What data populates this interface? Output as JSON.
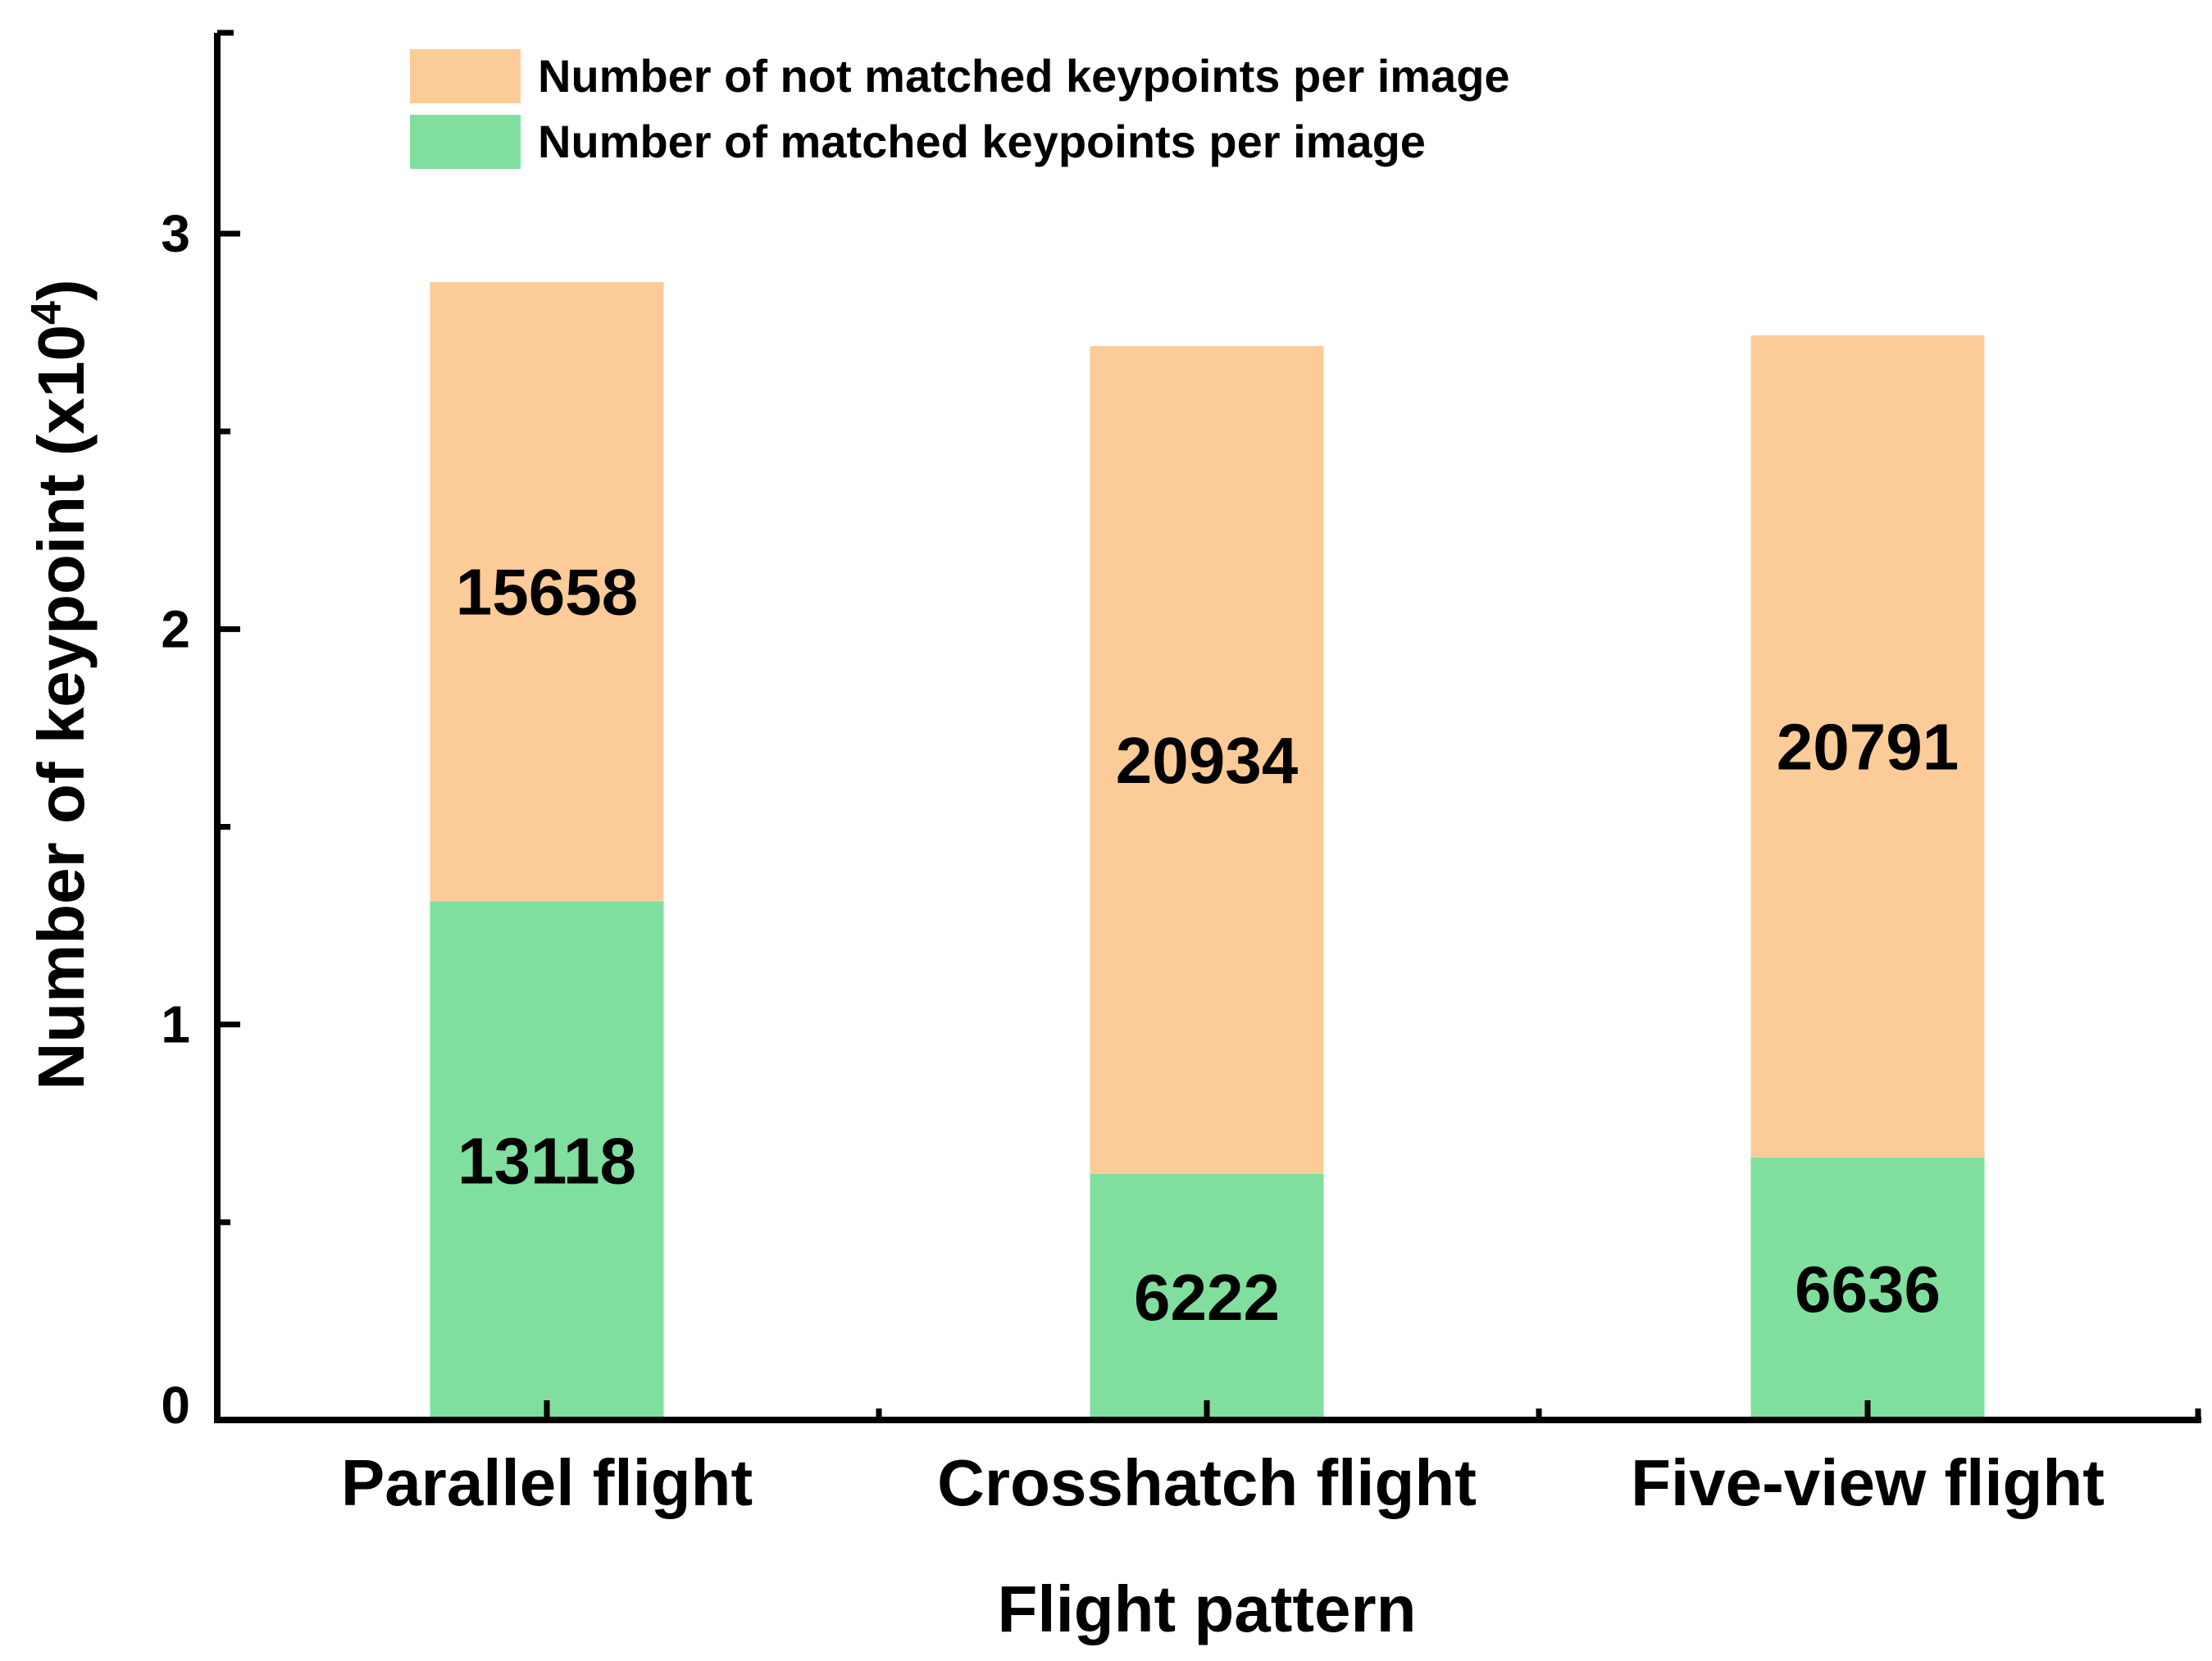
{
  "chart_data": {
    "type": "bar",
    "stacked": true,
    "categories": [
      "Parallel flight",
      "Crosshatch flight",
      "Five-view flight"
    ],
    "series": [
      {
        "name": "Number of matched keypoints per image",
        "values": [
          13118,
          6222,
          6636
        ],
        "color": "#80DF9F"
      },
      {
        "name": "Number of not matched keypoints per image",
        "values": [
          15658,
          20934,
          20791
        ],
        "color": "#FCCC98"
      }
    ],
    "xlabel": "Flight pattern",
    "ylabel": {
      "prefix": "Number of keypoint (x10",
      "superscript": "4",
      "suffix": ")"
    },
    "yticks": [
      {
        "value": 0,
        "label": "0"
      },
      {
        "value": 10000,
        "label": "1"
      },
      {
        "value": 20000,
        "label": "2"
      },
      {
        "value": 30000,
        "label": "3"
      }
    ],
    "ylim": [
      0,
      35000
    ],
    "grid": false,
    "legend": {
      "placement": "top-left",
      "order": [
        1,
        0
      ]
    }
  }
}
